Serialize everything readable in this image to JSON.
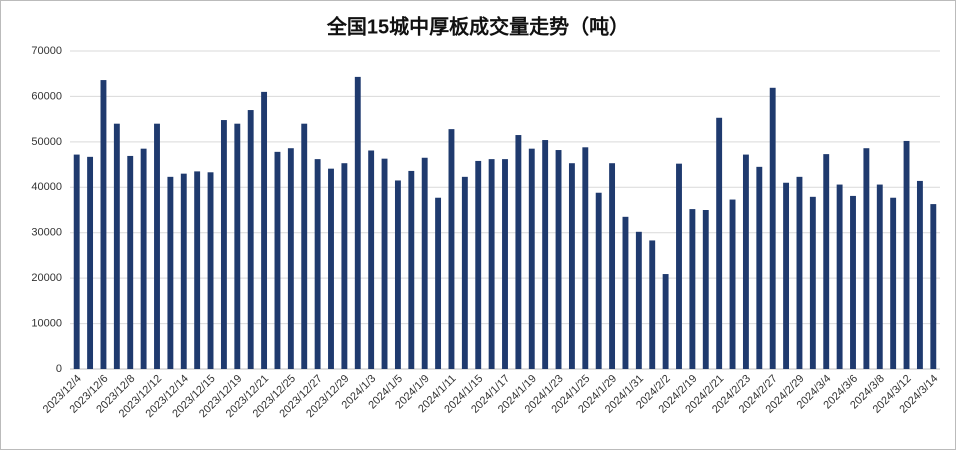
{
  "chart_data": {
    "type": "bar",
    "title": "全国15城中厚板成交量走势（吨）",
    "categories": [
      "2023/12/4",
      null,
      "2023/12/6",
      null,
      "2023/12/8",
      null,
      "2023/12/12",
      null,
      "2023/12/14",
      null,
      "2023/12/15",
      null,
      "2023/12/19",
      null,
      "2023/12/21",
      null,
      "2023/12/25",
      null,
      "2023/12/27",
      null,
      "2023/12/29",
      null,
      "2024/1/3",
      null,
      "2024/1/5",
      null,
      "2024/1/9",
      null,
      "2024/1/11",
      null,
      "2024/1/15",
      null,
      "2024/1/17",
      null,
      "2024/1/19",
      null,
      "2024/1/23",
      null,
      "2024/1/25",
      null,
      "2024/1/29",
      null,
      "2024/1/31",
      null,
      "2024/2/2",
      null,
      "2024/2/19",
      null,
      "2024/2/21",
      null,
      "2024/2/23",
      null,
      "2024/2/27",
      null,
      "2024/2/29",
      null,
      "2024/3/4",
      null,
      "2024/3/6",
      null,
      "2024/3/8",
      null,
      "2024/3/12",
      null,
      "2024/3/14"
    ],
    "values": [
      47200,
      46700,
      63600,
      54000,
      46900,
      48500,
      54000,
      42300,
      43000,
      43500,
      43300,
      54800,
      54000,
      57000,
      61000,
      47800,
      48600,
      54000,
      46200,
      44100,
      45300,
      64300,
      48100,
      46300,
      41500,
      43600,
      46500,
      37700,
      52800,
      42300,
      45800,
      46200,
      46200,
      51500,
      48500,
      50400,
      48200,
      45300,
      48800,
      38800,
      45300,
      33500,
      30200,
      28300,
      20900,
      45200,
      35200,
      35000,
      55300,
      37300,
      47200,
      44500,
      61900,
      41000,
      42300,
      37900,
      47300,
      40600,
      38100,
      48600,
      40600,
      37700,
      50200,
      41400,
      36300
    ],
    "color": "#1f3a6e",
    "ylim": [
      0,
      70000
    ],
    "yticks": [
      0,
      10000,
      20000,
      30000,
      40000,
      50000,
      60000,
      70000
    ],
    "grid": true
  }
}
